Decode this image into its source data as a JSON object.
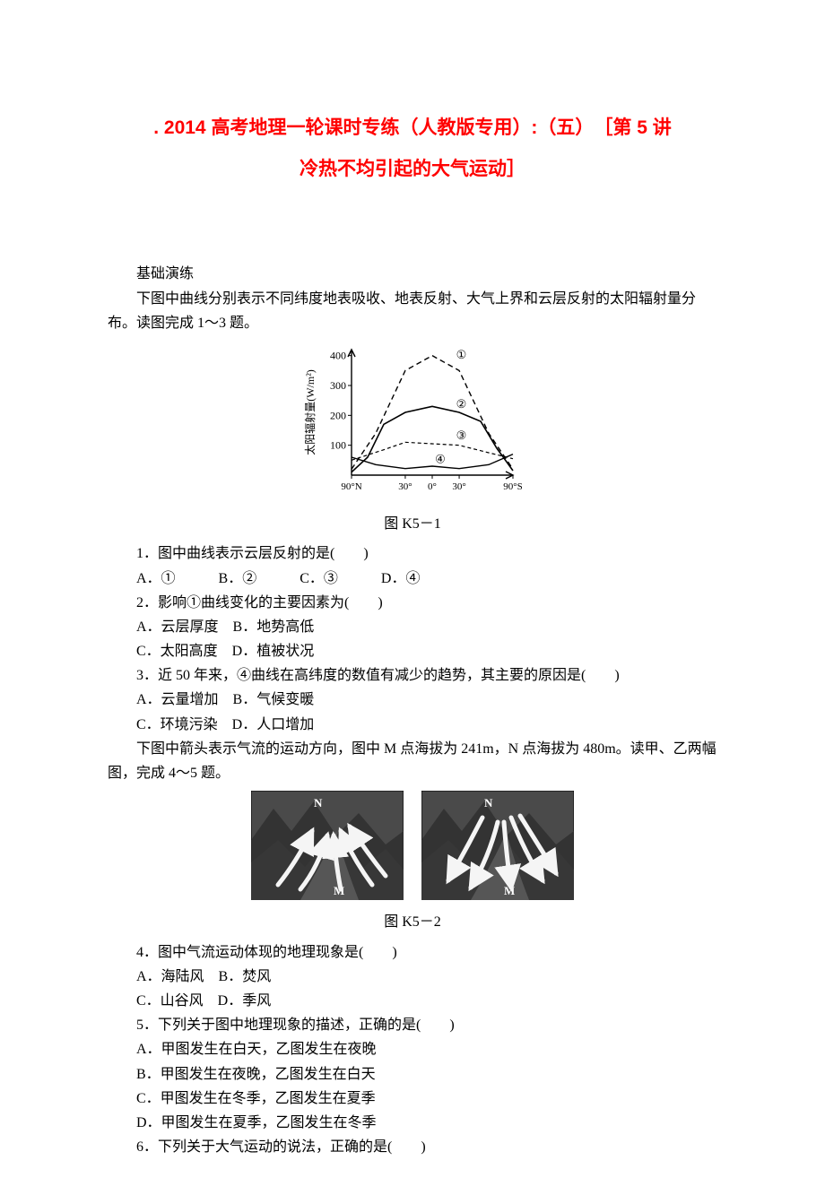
{
  "title": {
    "line1": ". 2014 高考地理一轮课时专练（人教版专用）:（五）　［第 5 讲",
    "line2": "冷热不均引起的大气运动］"
  },
  "section_heading": "基础演练",
  "intro_q1": "下图中曲线分别表示不同纬度地表吸收、地表反射、大气上界和云层反射的太阳辐射量分布。读图完成 1～3 题。",
  "chart1": {
    "type": "line",
    "y_label": "太阳辐射量(W/m²)",
    "y_ticks": [
      100,
      200,
      300,
      400
    ],
    "x_ticks_labels": [
      "90°N",
      "30°",
      "0°",
      "30°",
      "90°S"
    ],
    "x_tick_positions": [
      0,
      0.333,
      0.5,
      0.667,
      1.0
    ],
    "circle_labels": [
      "①",
      "②",
      "③",
      "④"
    ],
    "series": [
      {
        "name": "curve1",
        "dash": "6,4",
        "width": 1.4,
        "points": [
          [
            0,
            20
          ],
          [
            0.15,
            140
          ],
          [
            0.333,
            350
          ],
          [
            0.5,
            400
          ],
          [
            0.667,
            350
          ],
          [
            0.85,
            140
          ],
          [
            1.0,
            20
          ]
        ]
      },
      {
        "name": "curve2",
        "dash": "none",
        "width": 1.6,
        "points": [
          [
            0,
            10
          ],
          [
            0.1,
            60
          ],
          [
            0.2,
            170
          ],
          [
            0.333,
            210
          ],
          [
            0.5,
            230
          ],
          [
            0.667,
            210
          ],
          [
            0.8,
            180
          ],
          [
            0.9,
            90
          ],
          [
            1.0,
            15
          ]
        ]
      },
      {
        "name": "curve3",
        "dash": "4,3",
        "width": 1.2,
        "points": [
          [
            0,
            50
          ],
          [
            0.2,
            85
          ],
          [
            0.333,
            110
          ],
          [
            0.5,
            105
          ],
          [
            0.667,
            100
          ],
          [
            0.85,
            75
          ],
          [
            1.0,
            55
          ]
        ]
      },
      {
        "name": "curve4",
        "dash": "none",
        "width": 1.4,
        "points": [
          [
            0,
            60
          ],
          [
            0.15,
            35
          ],
          [
            0.333,
            22
          ],
          [
            0.5,
            30
          ],
          [
            0.667,
            22
          ],
          [
            0.85,
            35
          ],
          [
            1.0,
            70
          ]
        ]
      }
    ],
    "label_pos": {
      "①": [
        0.68,
        390
      ],
      "②": [
        0.68,
        225
      ],
      "③": [
        0.68,
        120
      ],
      "④": [
        0.55,
        40
      ]
    },
    "caption": "图 K5－1"
  },
  "q1": {
    "stem": "1．图中曲线表示云层反射的是(　　)",
    "opts": "A．①　　　B．②　　　C．③　　　D．④"
  },
  "q2": {
    "stem": "2．影响①曲线变化的主要因素为(　　)",
    "optAB": "A．云层厚度　B．地势高低",
    "optCD": "C．太阳高度　D．植被状况"
  },
  "q3": {
    "stem": "3．近 50 年来，④曲线在高纬度的数值有减少的趋势，其主要的原因是(　　)",
    "optAB": "A．云量增加　B．气候变暖",
    "optCD": "C．环境污染　D．人口增加"
  },
  "intro_q4": "下图中箭头表示气流的运动方向，图中 M 点海拔为 241m，N 点海拔为 480m。读甲、乙两幅图，完成 4～5 题。",
  "chart2": {
    "type": "diagram-pair",
    "labels": {
      "N": "N",
      "M": "M"
    },
    "caption": "图 K5－2",
    "bg": "#4a4a4a",
    "arrow": "#f5f5f5",
    "ridge": "#2c2c2c"
  },
  "q4": {
    "stem": "4．图中气流运动体现的地理现象是(　　)",
    "optAB": "A．海陆风　B．焚风",
    "optCD": "C．山谷风　D．季风"
  },
  "q5": {
    "stem": "5．下列关于图中地理现象的描述，正确的是(　　)",
    "optA": "A．甲图发生在白天，乙图发生在夜晚",
    "optB": "B．甲图发生在夜晚，乙图发生在白天",
    "optC": "C．甲图发生在冬季，乙图发生在夏季",
    "optD": "D．甲图发生在夏季，乙图发生在冬季"
  },
  "q6": {
    "stem": "6．下列关于大气运动的说法，正确的是(　　)"
  }
}
